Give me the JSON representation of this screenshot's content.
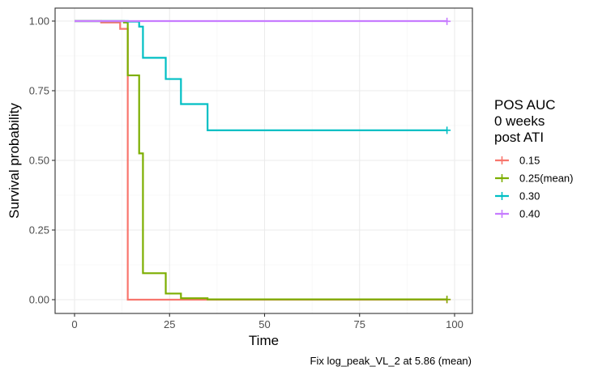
{
  "chart_data": {
    "type": "line",
    "subtype": "step (Kaplan-Meier survival curves)",
    "xlabel": "Time",
    "ylabel": "Survival probability",
    "xlim": [
      0,
      100
    ],
    "ylim": [
      0,
      1
    ],
    "x_ticks": [
      0,
      25,
      50,
      75,
      100
    ],
    "y_ticks": [
      "0.00",
      "0.25",
      "0.50",
      "0.75",
      "1.00"
    ],
    "grid": true,
    "legend": {
      "title_lines": [
        "POS AUC",
        "0 weeks",
        "post ATI"
      ],
      "placement": "right"
    },
    "caption": "Fix log_peak_VL_2 at 5.86 (mean)",
    "series": [
      {
        "name": "0.15",
        "color": "#F8766D",
        "x": [
          0,
          7,
          12,
          14,
          98
        ],
        "y": [
          1.0,
          0.995,
          0.972,
          0.0,
          0.0
        ],
        "censor_x": [
          98
        ],
        "censor_y": [
          0.0
        ]
      },
      {
        "name": "0.25(mean)",
        "color": "#7CAE00",
        "x": [
          0,
          13,
          14,
          17,
          18,
          24,
          28,
          35,
          98
        ],
        "y": [
          1.0,
          0.995,
          0.805,
          0.525,
          0.095,
          0.022,
          0.005,
          0.001,
          0.001
        ],
        "censor_x": [
          98
        ],
        "censor_y": [
          0.001
        ]
      },
      {
        "name": "0.30",
        "color": "#00BFC4",
        "x": [
          0,
          14,
          17,
          18,
          24,
          28,
          35,
          98
        ],
        "y": [
          1.0,
          0.998,
          0.98,
          0.868,
          0.792,
          0.702,
          0.608,
          0.608
        ],
        "censor_x": [
          98
        ],
        "censor_y": [
          0.608
        ]
      },
      {
        "name": "0.40",
        "color": "#C77CFF",
        "x": [
          0,
          98
        ],
        "y": [
          1.0,
          0.999
        ],
        "censor_x": [
          98
        ],
        "censor_y": [
          0.999
        ]
      }
    ]
  }
}
